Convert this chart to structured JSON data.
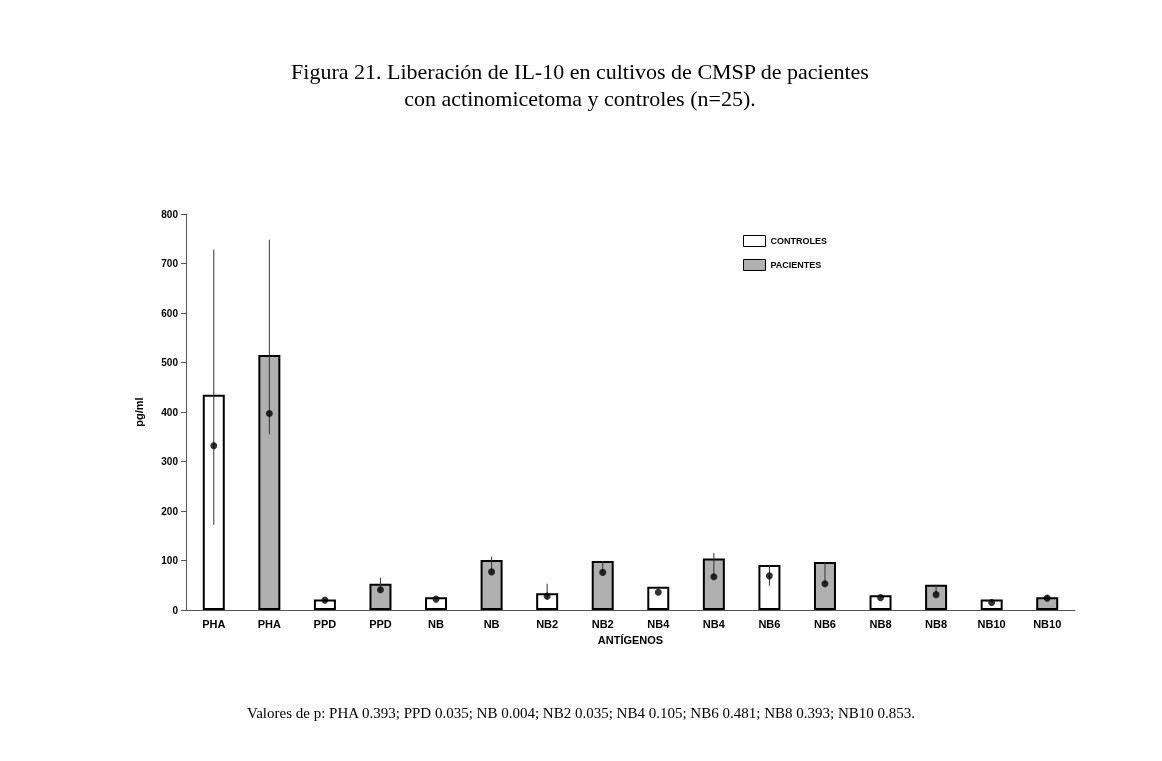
{
  "chart_data": {
    "type": "bar",
    "title": "Figura 21. Liberación de IL-10 en cultivos de CMSP de pacientes con actinomicetoma y controles (n=25).",
    "xlabel": "ANTÍGENOS",
    "ylabel": "pg/ml",
    "categories": [
      "PHA",
      "PHA",
      "PPD",
      "PPD",
      "NB",
      "NB",
      "NB2",
      "NB2",
      "NB4",
      "NB4",
      "NB6",
      "NB6",
      "NB8",
      "NB8",
      "NB10",
      "NB10"
    ],
    "series": [
      {
        "name": "CONTROLES",
        "color": "#ffffff",
        "values": [
          435,
          null,
          21,
          null,
          26,
          null,
          34,
          null,
          47,
          null,
          91,
          null,
          30,
          null,
          21,
          null
        ],
        "errors": [
          [
            172,
            728
          ],
          null,
          null,
          null,
          null,
          null,
          [
            21,
            53
          ],
          null,
          null,
          null,
          [
            49,
            91
          ],
          null,
          null,
          null,
          null,
          null
        ]
      },
      {
        "name": "PACIENTES",
        "color": "#b0b0b0",
        "values": [
          null,
          515,
          null,
          53,
          null,
          101,
          null,
          99,
          null,
          104,
          null,
          97,
          null,
          51,
          null,
          26
        ],
        "errors": [
          null,
          [
            355,
            748
          ],
          null,
          [
            40,
            65
          ],
          null,
          [
            75,
            108
          ],
          null,
          [
            76,
            99
          ],
          null,
          [
            67,
            115
          ],
          null,
          [
            53,
            97
          ],
          null,
          [
            31,
            51
          ],
          null,
          [
            24,
            30
          ]
        ]
      },
      {
        "type": "scatter",
        "color": "#000000",
        "marker": "circle",
        "values": [
          332,
          397,
          20,
          41,
          22,
          77,
          28,
          76,
          36,
          67,
          69,
          53,
          25,
          31,
          15,
          24
        ]
      }
    ],
    "ylim": [
      0,
      800
    ],
    "yticks": [
      0,
      100,
      200,
      300,
      400,
      500,
      600,
      700,
      800
    ],
    "grid": false,
    "legend": "top right",
    "annotations": [
      "Valores de p: PHA 0.393; PPD 0.035; NB 0.004; NB2 0.035; NB4 0.105; NB6 0.481; NB8 0.393; NB10 0.853."
    ]
  }
}
